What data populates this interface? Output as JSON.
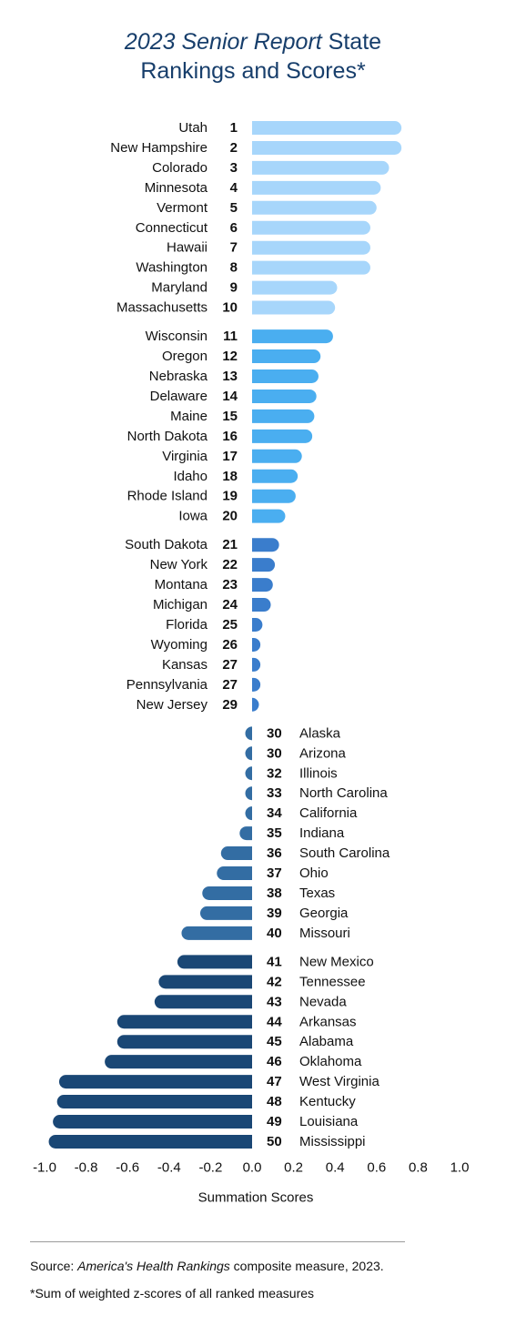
{
  "title": {
    "line1_italic": "2023 Senior Report",
    "line1_rest": " State",
    "line2": "Rankings and Scores*"
  },
  "colors": {
    "title": "#173e6b",
    "group_1_10": "#a7d6fb",
    "group_11_20": "#4aaef0",
    "group_21_29": "#3a7dcc",
    "group_30_40": "#336da3",
    "group_41_50": "#1a4775"
  },
  "chart_data": {
    "type": "bar",
    "orientation": "horizontal",
    "xlabel": "Summation Scores",
    "xlim": [
      -1.0,
      1.0
    ],
    "xticks": [
      "-1.0",
      "-0.8",
      "-0.6",
      "-0.4",
      "-0.2",
      "0.0",
      "0.2",
      "0.4",
      "0.6",
      "0.8",
      "1.0"
    ],
    "grid": false,
    "groups": [
      {
        "color": "#a7d6fb",
        "items": [
          {
            "state": "Utah",
            "rank": "1",
            "score": 0.72
          },
          {
            "state": "New Hampshire",
            "rank": "2",
            "score": 0.72
          },
          {
            "state": "Colorado",
            "rank": "3",
            "score": 0.66
          },
          {
            "state": "Minnesota",
            "rank": "4",
            "score": 0.62
          },
          {
            "state": "Vermont",
            "rank": "5",
            "score": 0.6
          },
          {
            "state": "Connecticut",
            "rank": "6",
            "score": 0.57
          },
          {
            "state": "Hawaii",
            "rank": "7",
            "score": 0.57
          },
          {
            "state": "Washington",
            "rank": "8",
            "score": 0.57
          },
          {
            "state": "Maryland",
            "rank": "9",
            "score": 0.41
          },
          {
            "state": "Massachusetts",
            "rank": "10",
            "score": 0.4
          }
        ]
      },
      {
        "color": "#4aaef0",
        "items": [
          {
            "state": "Wisconsin",
            "rank": "11",
            "score": 0.39
          },
          {
            "state": "Oregon",
            "rank": "12",
            "score": 0.33
          },
          {
            "state": "Nebraska",
            "rank": "13",
            "score": 0.32
          },
          {
            "state": "Delaware",
            "rank": "14",
            "score": 0.31
          },
          {
            "state": "Maine",
            "rank": "15",
            "score": 0.3
          },
          {
            "state": "North Dakota",
            "rank": "16",
            "score": 0.29
          },
          {
            "state": "Virginia",
            "rank": "17",
            "score": 0.24
          },
          {
            "state": "Idaho",
            "rank": "18",
            "score": 0.22
          },
          {
            "state": "Rhode Island",
            "rank": "19",
            "score": 0.21
          },
          {
            "state": "Iowa",
            "rank": "20",
            "score": 0.16
          }
        ]
      },
      {
        "color": "#3a7dcc",
        "items": [
          {
            "state": "South Dakota",
            "rank": "21",
            "score": 0.13
          },
          {
            "state": "New York",
            "rank": "22",
            "score": 0.11
          },
          {
            "state": "Montana",
            "rank": "23",
            "score": 0.1
          },
          {
            "state": "Michigan",
            "rank": "24",
            "score": 0.09
          },
          {
            "state": "Florida",
            "rank": "25",
            "score": 0.05
          },
          {
            "state": "Wyoming",
            "rank": "26",
            "score": 0.04
          },
          {
            "state": "Kansas",
            "rank": "27",
            "score": 0.04
          },
          {
            "state": "Pennsylvania",
            "rank": "27",
            "score": 0.04
          },
          {
            "state": "New Jersey",
            "rank": "29",
            "score": 0.03
          }
        ]
      },
      {
        "color": "#336da3",
        "items": [
          {
            "state": "Alaska",
            "rank": "30",
            "score": -0.01
          },
          {
            "state": "Arizona",
            "rank": "30",
            "score": -0.01
          },
          {
            "state": "Illinois",
            "rank": "32",
            "score": -0.02
          },
          {
            "state": "North Carolina",
            "rank": "33",
            "score": -0.02
          },
          {
            "state": "California",
            "rank": "34",
            "score": -0.03
          },
          {
            "state": "Indiana",
            "rank": "35",
            "score": -0.06
          },
          {
            "state": "South Carolina",
            "rank": "36",
            "score": -0.15
          },
          {
            "state": "Ohio",
            "rank": "37",
            "score": -0.17
          },
          {
            "state": "Texas",
            "rank": "38",
            "score": -0.24
          },
          {
            "state": "Georgia",
            "rank": "39",
            "score": -0.25
          },
          {
            "state": "Missouri",
            "rank": "40",
            "score": -0.34
          }
        ]
      },
      {
        "color": "#1a4775",
        "items": [
          {
            "state": "New Mexico",
            "rank": "41",
            "score": -0.36
          },
          {
            "state": "Tennessee",
            "rank": "42",
            "score": -0.45
          },
          {
            "state": "Nevada",
            "rank": "43",
            "score": -0.47
          },
          {
            "state": "Arkansas",
            "rank": "44",
            "score": -0.65
          },
          {
            "state": "Alabama",
            "rank": "45",
            "score": -0.65
          },
          {
            "state": "Oklahoma",
            "rank": "46",
            "score": -0.71
          },
          {
            "state": "West Virginia",
            "rank": "47",
            "score": -0.93
          },
          {
            "state": "Kentucky",
            "rank": "48",
            "score": -0.94
          },
          {
            "state": "Louisiana",
            "rank": "49",
            "score": -0.96
          },
          {
            "state": "Mississippi",
            "rank": "50",
            "score": -0.98
          }
        ]
      }
    ]
  },
  "footer": {
    "source_prefix": "Source: ",
    "source_italic": "America's Health Rankings",
    "source_rest": " composite measure, 2023.",
    "note": "*Sum of weighted z-scores of all ranked measures"
  }
}
